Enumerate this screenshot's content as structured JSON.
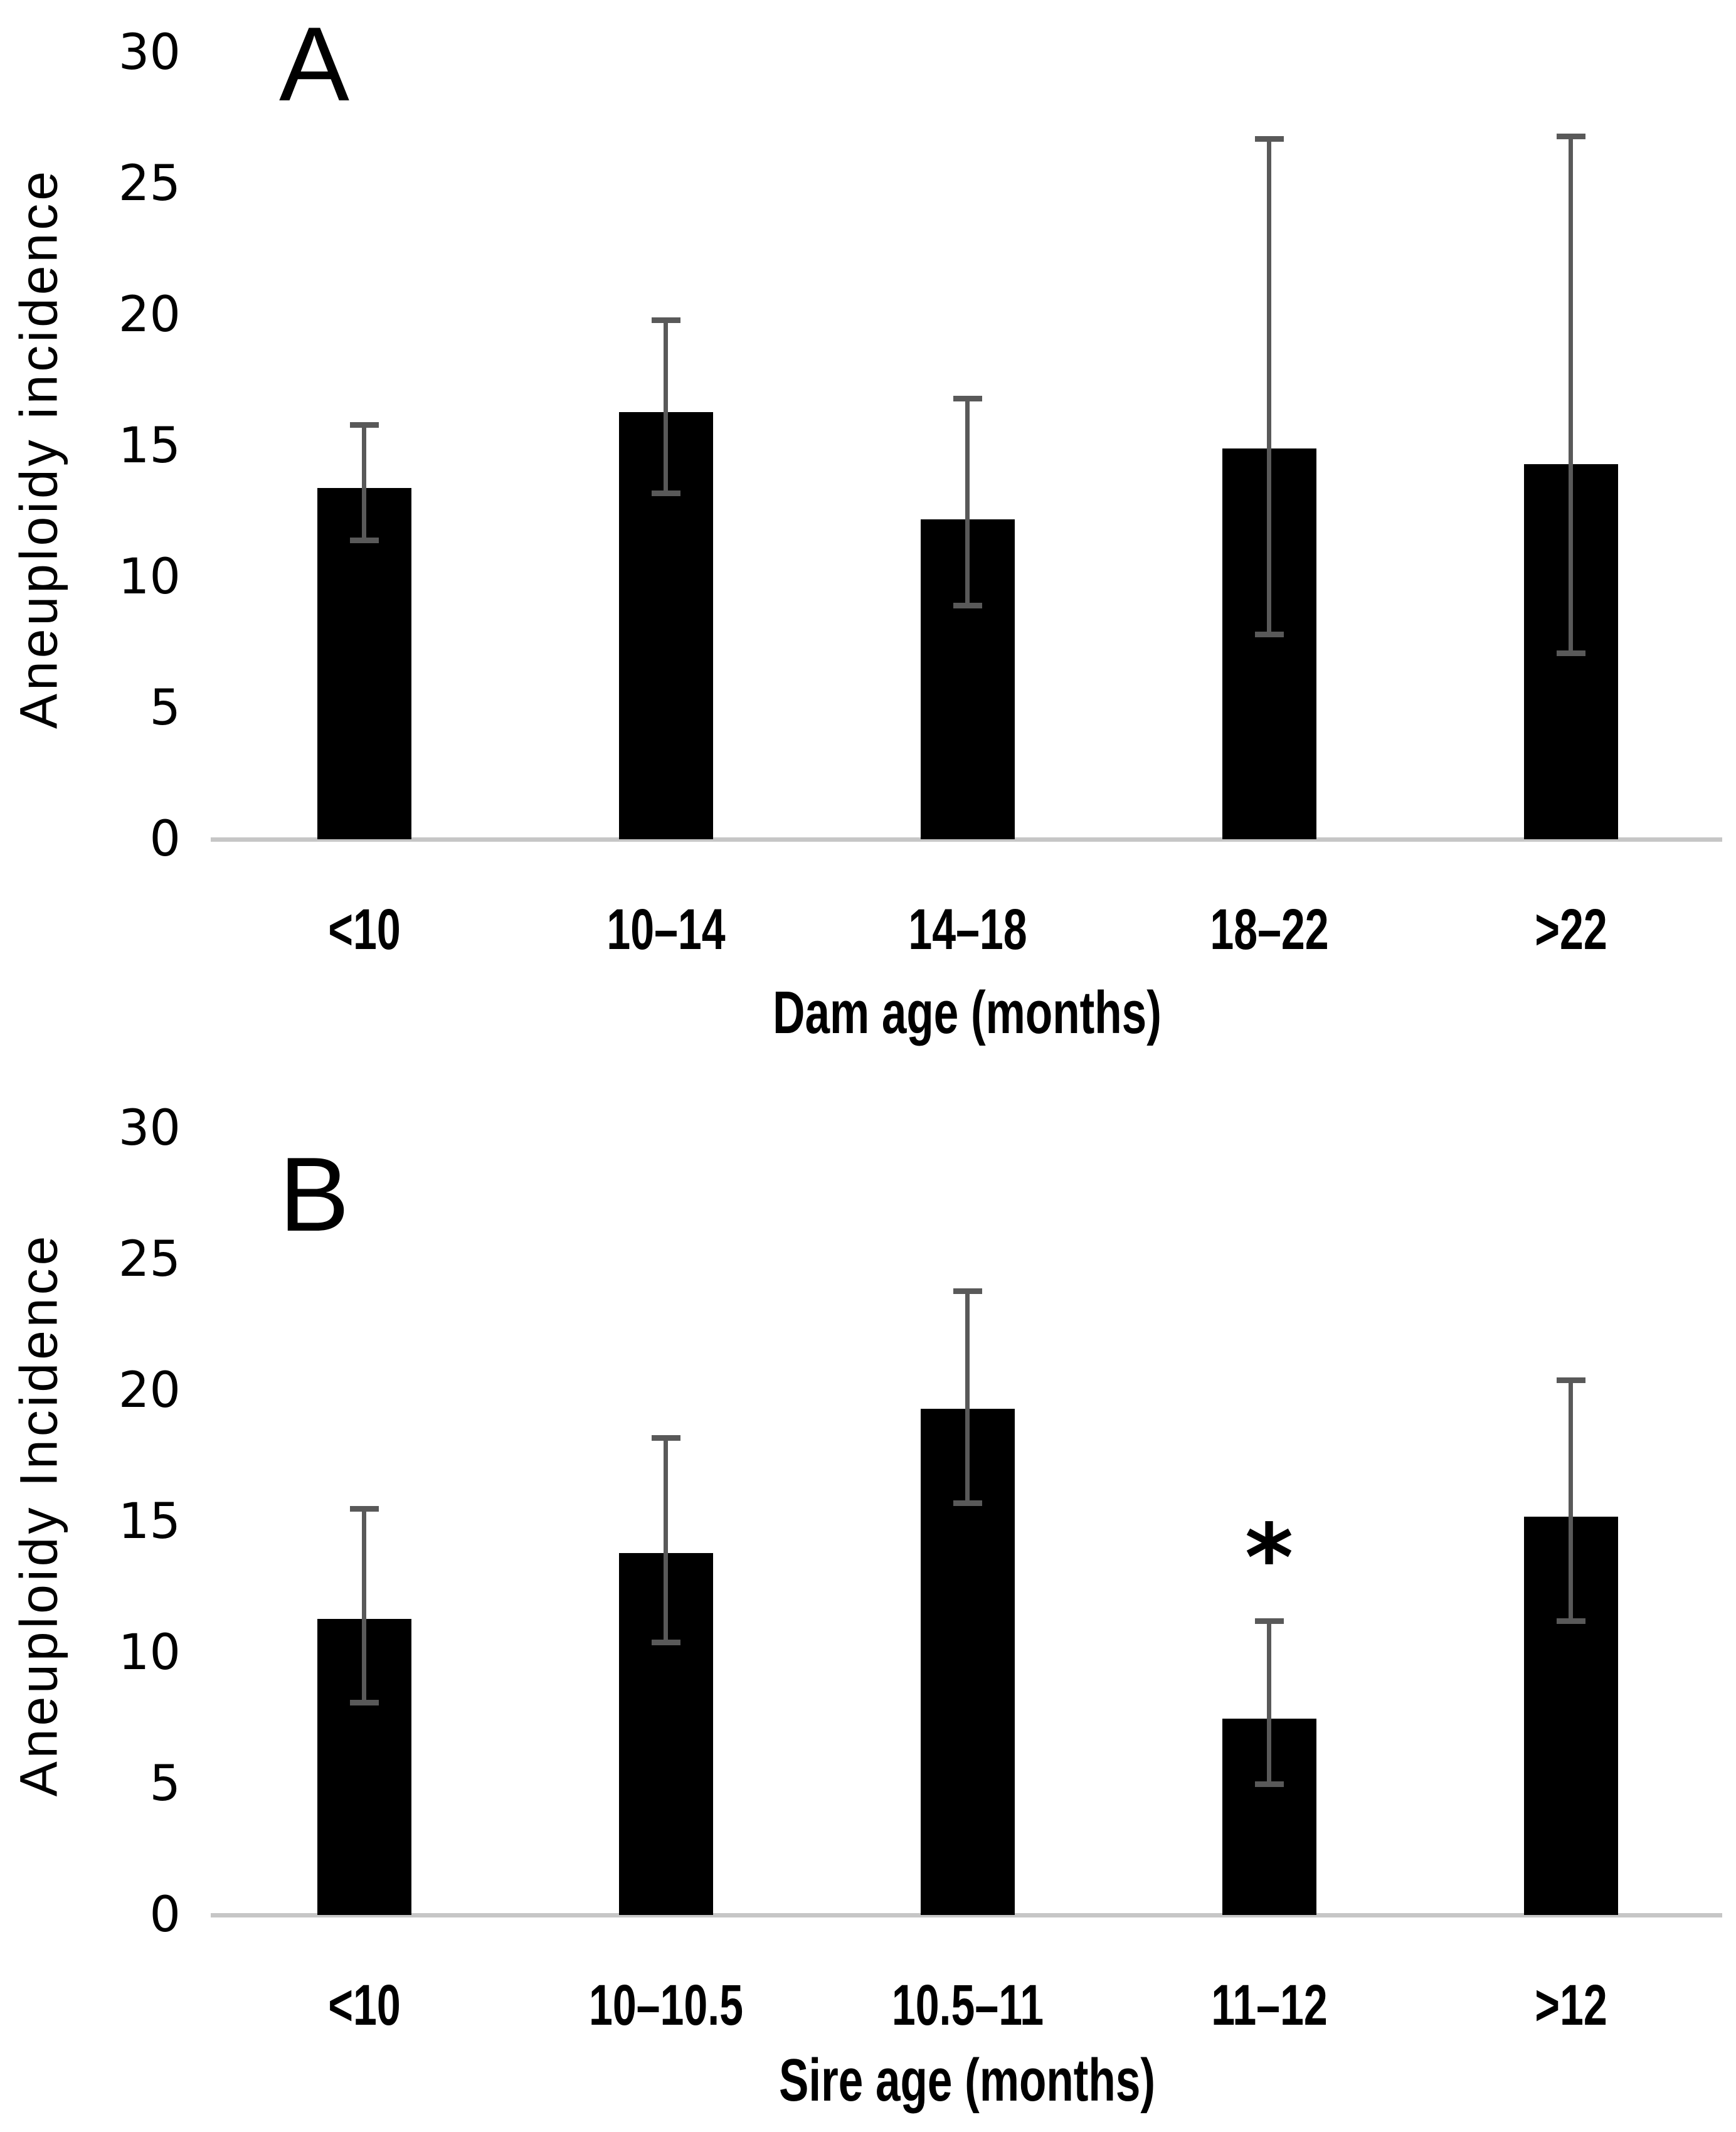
{
  "figure": {
    "background_color": "#ffffff",
    "bar_color": "#000000",
    "error_bar_color": "#595959",
    "axis_line_color": "#c6c6c6",
    "text_color": "#000000"
  },
  "chart_data": [
    {
      "type": "bar",
      "panel_label": "A",
      "title": "",
      "ylabel": "Aneuploidy incidence",
      "xlabel": "Dam age (months)",
      "categories": [
        "<10",
        "10–14",
        "14–18",
        "18–22",
        ">22"
      ],
      "values": [
        13.4,
        16.3,
        12.2,
        14.9,
        14.3
      ],
      "error_bars": {
        "upper": [
          15.8,
          19.8,
          16.8,
          26.7,
          26.8
        ],
        "lower": [
          11.4,
          13.2,
          8.9,
          7.8,
          7.1
        ]
      },
      "ylim": [
        0,
        30
      ],
      "yticks": [
        0,
        5,
        10,
        15,
        20,
        25,
        30
      ],
      "grid": false,
      "legend": null,
      "annotations": []
    },
    {
      "type": "bar",
      "panel_label": "B",
      "title": "",
      "ylabel": "Aneuploidy Incidence",
      "xlabel": "Sire age (months)",
      "categories": [
        "<10",
        "10–10.5",
        "10.5–11",
        "11–12",
        ">12"
      ],
      "values": [
        11.3,
        13.8,
        19.3,
        7.5,
        15.2
      ],
      "error_bars": {
        "upper": [
          15.5,
          18.2,
          23.8,
          11.2,
          20.4
        ],
        "lower": [
          8.1,
          10.4,
          15.7,
          5.0,
          11.2
        ]
      },
      "ylim": [
        0,
        30
      ],
      "yticks": [
        0,
        5,
        10,
        15,
        20,
        25,
        30
      ],
      "grid": false,
      "legend": null,
      "annotations": [
        {
          "text": "*",
          "category_index": 3
        }
      ]
    }
  ]
}
